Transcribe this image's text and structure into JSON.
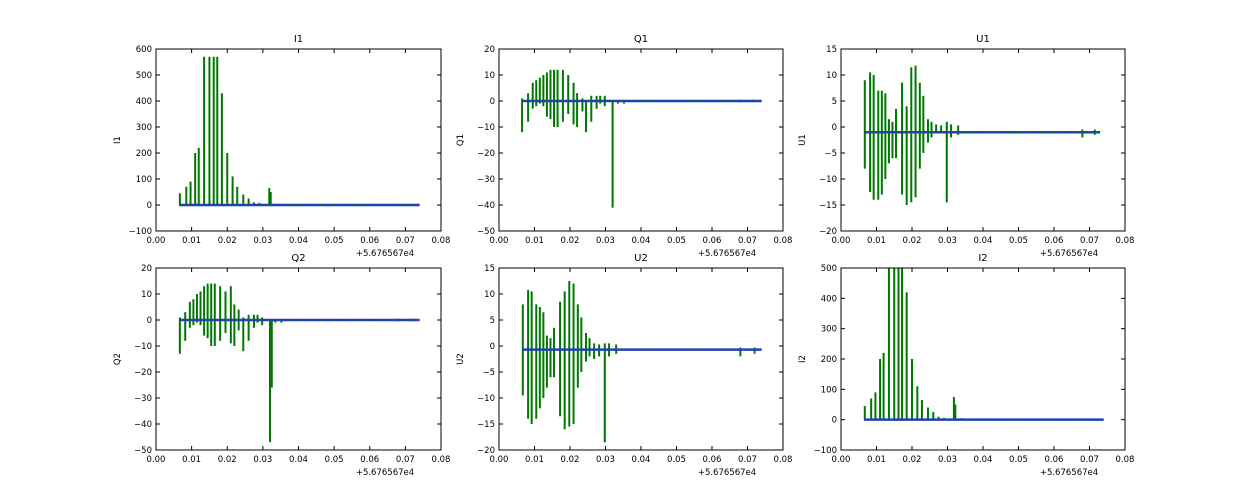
{
  "colors": {
    "green": "#007700",
    "blue": "#1f3fbf",
    "axes": "#000000"
  },
  "chart_data": [
    {
      "type": "line",
      "title": "I1",
      "ylabel": "I1",
      "xlim": [
        0,
        0.08
      ],
      "ylim": [
        -100,
        600
      ],
      "xticks": [
        "0.00",
        "0.01",
        "0.02",
        "0.03",
        "0.04",
        "0.05",
        "0.06",
        "0.07",
        "0.08"
      ],
      "yticks": [
        "−100",
        "0",
        "100",
        "200",
        "300",
        "400",
        "500",
        "600"
      ],
      "offset_text": "+5.676567e4",
      "baseline": 0,
      "x_range": [
        0.0065,
        0.074
      ],
      "spikes": [
        [
          0.0067,
          0,
          45
        ],
        [
          0.0085,
          0,
          70
        ],
        [
          0.0097,
          0,
          90
        ],
        [
          0.011,
          0,
          200
        ],
        [
          0.012,
          0,
          220
        ],
        [
          0.0135,
          0,
          570
        ],
        [
          0.015,
          0,
          570
        ],
        [
          0.0162,
          0,
          570
        ],
        [
          0.0172,
          0,
          570
        ],
        [
          0.0185,
          0,
          430
        ],
        [
          0.02,
          0,
          200
        ],
        [
          0.0215,
          0,
          110
        ],
        [
          0.0228,
          0,
          70
        ],
        [
          0.0245,
          0,
          40
        ],
        [
          0.026,
          0,
          25
        ],
        [
          0.0275,
          0,
          10
        ],
        [
          0.029,
          0,
          8
        ],
        [
          0.0318,
          0,
          65
        ],
        [
          0.0322,
          0,
          50
        ],
        [
          0.034,
          0,
          5
        ],
        [
          0.036,
          0,
          4
        ],
        [
          0.038,
          0,
          3
        ],
        [
          0.068,
          0,
          4
        ],
        [
          0.072,
          0,
          3
        ]
      ]
    },
    {
      "type": "line",
      "title": "Q1",
      "ylabel": "Q1",
      "xlim": [
        0,
        0.08
      ],
      "ylim": [
        -50,
        20
      ],
      "xticks": [
        "0.00",
        "0.01",
        "0.02",
        "0.03",
        "0.04",
        "0.05",
        "0.06",
        "0.07",
        "0.08"
      ],
      "yticks": [
        "−50",
        "−40",
        "−30",
        "−20",
        "−10",
        "0",
        "10",
        "20"
      ],
      "offset_text": "+5.676567e4",
      "baseline": 0,
      "x_range": [
        0.0065,
        0.074
      ],
      "spikes": [
        [
          0.0065,
          -12,
          1
        ],
        [
          0.0082,
          -8,
          3
        ],
        [
          0.0095,
          -3,
          7
        ],
        [
          0.0105,
          -2,
          8
        ],
        [
          0.0115,
          -1,
          9
        ],
        [
          0.0125,
          -2,
          10
        ],
        [
          0.0135,
          -6,
          11
        ],
        [
          0.0145,
          -7,
          12
        ],
        [
          0.0155,
          -10,
          12
        ],
        [
          0.0165,
          -10,
          12
        ],
        [
          0.018,
          -8,
          12
        ],
        [
          0.0195,
          -5,
          10
        ],
        [
          0.021,
          -9,
          7
        ],
        [
          0.022,
          -10,
          3
        ],
        [
          0.0235,
          -4,
          1
        ],
        [
          0.0245,
          -12,
          0
        ],
        [
          0.026,
          -8,
          2
        ],
        [
          0.0275,
          -3,
          2
        ],
        [
          0.0285,
          -1,
          2
        ],
        [
          0.0298,
          -2,
          2
        ],
        [
          0.032,
          -41,
          0
        ],
        [
          0.0335,
          -1,
          0
        ],
        [
          0.0352,
          -1,
          0
        ],
        [
          0.068,
          -0.5,
          0.5
        ],
        [
          0.0715,
          -0.5,
          0.5
        ]
      ]
    },
    {
      "type": "line",
      "title": "U1",
      "ylabel": "U1",
      "xlim": [
        0,
        0.08
      ],
      "ylim": [
        -20,
        15
      ],
      "xticks": [
        "0.00",
        "0.01",
        "0.02",
        "0.03",
        "0.04",
        "0.05",
        "0.06",
        "0.07",
        "0.08"
      ],
      "yticks": [
        "−20",
        "−15",
        "−10",
        "−5",
        "0",
        "5",
        "10",
        "15"
      ],
      "offset_text": "+5.676567e4",
      "baseline": -1,
      "x_range": [
        0.0065,
        0.073
      ],
      "spikes": [
        [
          0.0067,
          -8,
          9
        ],
        [
          0.0082,
          -12.5,
          10.5
        ],
        [
          0.0092,
          -14,
          10
        ],
        [
          0.0105,
          -14,
          7
        ],
        [
          0.0115,
          -13,
          7
        ],
        [
          0.0125,
          -10,
          6.5
        ],
        [
          0.0135,
          -7,
          1.5
        ],
        [
          0.0145,
          -6,
          1
        ],
        [
          0.0155,
          -6,
          3.5
        ],
        [
          0.0172,
          -13,
          8.5
        ],
        [
          0.0185,
          -15,
          4
        ],
        [
          0.0198,
          -14.5,
          11.5
        ],
        [
          0.021,
          -13.5,
          11.8
        ],
        [
          0.0222,
          -8,
          8.5
        ],
        [
          0.0232,
          -5,
          6
        ],
        [
          0.0245,
          -3,
          1.5
        ],
        [
          0.0255,
          -2,
          1
        ],
        [
          0.0268,
          -1,
          0.5
        ],
        [
          0.0282,
          -1,
          0.3
        ],
        [
          0.0298,
          -14.5,
          1
        ],
        [
          0.031,
          -2,
          0.5
        ],
        [
          0.033,
          -1.5,
          0.3
        ],
        [
          0.068,
          -2,
          -0.5
        ],
        [
          0.0715,
          -1.5,
          -0.5
        ]
      ]
    },
    {
      "type": "line",
      "title": "Q2",
      "ylabel": "Q2",
      "xlim": [
        0,
        0.08
      ],
      "ylim": [
        -50,
        20
      ],
      "xticks": [
        "0.00",
        "0.01",
        "0.02",
        "0.03",
        "0.04",
        "0.05",
        "0.06",
        "0.07",
        "0.08"
      ],
      "yticks": [
        "−50",
        "−40",
        "−30",
        "−20",
        "−10",
        "0",
        "10",
        "20"
      ],
      "offset_text": "+5.676567e4",
      "baseline": 0,
      "x_range": [
        0.0065,
        0.074
      ],
      "spikes": [
        [
          0.0067,
          -13,
          1
        ],
        [
          0.0082,
          -8,
          3
        ],
        [
          0.0095,
          -3,
          7
        ],
        [
          0.0105,
          -2,
          8
        ],
        [
          0.0115,
          -1,
          10
        ],
        [
          0.0125,
          -2,
          11
        ],
        [
          0.0135,
          -6,
          13
        ],
        [
          0.0145,
          -7,
          14
        ],
        [
          0.0155,
          -10,
          14
        ],
        [
          0.0165,
          -10,
          14
        ],
        [
          0.018,
          -8,
          13
        ],
        [
          0.0195,
          -5,
          11
        ],
        [
          0.021,
          -9,
          13
        ],
        [
          0.022,
          -10,
          6
        ],
        [
          0.0232,
          -4,
          4
        ],
        [
          0.0245,
          -12,
          1
        ],
        [
          0.026,
          -8,
          2
        ],
        [
          0.0275,
          -3,
          2
        ],
        [
          0.0285,
          -1,
          2
        ],
        [
          0.0298,
          -2,
          1
        ],
        [
          0.032,
          -47,
          0
        ],
        [
          0.0325,
          -26,
          0
        ],
        [
          0.0335,
          -1,
          0
        ],
        [
          0.0352,
          -1,
          0
        ],
        [
          0.068,
          -0.5,
          0.5
        ],
        [
          0.0715,
          -0.5,
          0.5
        ]
      ]
    },
    {
      "type": "line",
      "title": "U2",
      "ylabel": "U2",
      "xlim": [
        0,
        0.08
      ],
      "ylim": [
        -20,
        15
      ],
      "xticks": [
        "0.00",
        "0.01",
        "0.02",
        "0.03",
        "0.04",
        "0.05",
        "0.06",
        "0.07",
        "0.08"
      ],
      "yticks": [
        "−20",
        "−15",
        "−10",
        "−5",
        "0",
        "5",
        "10",
        "15"
      ],
      "offset_text": "+5.676567e4",
      "baseline": -0.7,
      "x_range": [
        0.0065,
        0.074
      ],
      "spikes": [
        [
          0.0067,
          -9.5,
          8
        ],
        [
          0.0082,
          -14,
          10.8
        ],
        [
          0.0092,
          -15,
          10.5
        ],
        [
          0.0105,
          -14,
          8
        ],
        [
          0.0115,
          -12,
          7.5
        ],
        [
          0.0125,
          -10,
          6.5
        ],
        [
          0.0135,
          -8,
          2
        ],
        [
          0.0145,
          -6,
          1.5
        ],
        [
          0.0155,
          -6,
          3.5
        ],
        [
          0.0172,
          -13.5,
          8.5
        ],
        [
          0.0185,
          -16,
          10.5
        ],
        [
          0.0198,
          -15.5,
          12.5
        ],
        [
          0.021,
          -15,
          12
        ],
        [
          0.0222,
          -8,
          8
        ],
        [
          0.0232,
          -5,
          5.5
        ],
        [
          0.0245,
          -3,
          2.5
        ],
        [
          0.0255,
          -2,
          1.5
        ],
        [
          0.0268,
          -2.5,
          0.5
        ],
        [
          0.0282,
          -2,
          0.3
        ],
        [
          0.0298,
          -18.5,
          0.5
        ],
        [
          0.031,
          -2,
          0.5
        ],
        [
          0.033,
          -1.5,
          0.3
        ],
        [
          0.068,
          -2,
          -0.3
        ],
        [
          0.072,
          -1.5,
          -0.3
        ]
      ]
    },
    {
      "type": "line",
      "title": "I2",
      "ylabel": "I2",
      "xlim": [
        0,
        0.08
      ],
      "ylim": [
        -100,
        500
      ],
      "xticks": [
        "0.00",
        "0.01",
        "0.02",
        "0.03",
        "0.04",
        "0.05",
        "0.06",
        "0.07",
        "0.08"
      ],
      "yticks": [
        "−100",
        "0",
        "100",
        "200",
        "300",
        "400",
        "500"
      ],
      "offset_text": "+5.676567e4",
      "baseline": 0,
      "x_range": [
        0.0065,
        0.074
      ],
      "spikes": [
        [
          0.0067,
          0,
          45
        ],
        [
          0.0085,
          0,
          70
        ],
        [
          0.0097,
          0,
          90
        ],
        [
          0.011,
          0,
          200
        ],
        [
          0.012,
          0,
          220
        ],
        [
          0.0135,
          0,
          500
        ],
        [
          0.015,
          0,
          500
        ],
        [
          0.0162,
          0,
          500
        ],
        [
          0.0172,
          0,
          500
        ],
        [
          0.0185,
          0,
          420
        ],
        [
          0.02,
          0,
          200
        ],
        [
          0.0215,
          0,
          110
        ],
        [
          0.0228,
          0,
          65
        ],
        [
          0.0245,
          0,
          40
        ],
        [
          0.026,
          0,
          25
        ],
        [
          0.0275,
          0,
          10
        ],
        [
          0.029,
          0,
          6
        ],
        [
          0.0318,
          0,
          75
        ],
        [
          0.0322,
          0,
          50
        ],
        [
          0.034,
          0,
          5
        ],
        [
          0.036,
          0,
          4
        ],
        [
          0.068,
          0,
          4
        ],
        [
          0.072,
          0,
          3
        ]
      ]
    }
  ]
}
